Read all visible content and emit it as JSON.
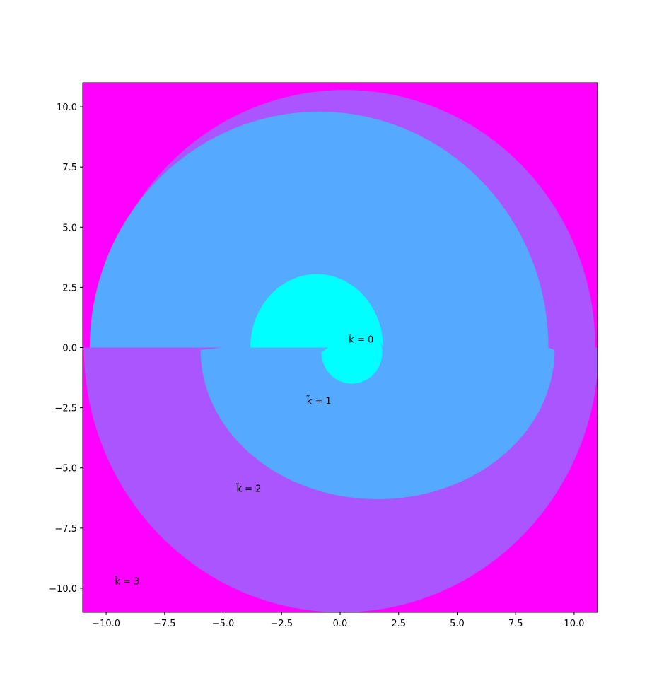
{
  "chart_data": {
    "type": "heatmap",
    "title": "",
    "xlabel": "",
    "ylabel": "",
    "xlim": [
      -11,
      11
    ],
    "ylim": [
      -11,
      11
    ],
    "xticks": [
      -10.0,
      -7.5,
      -5.0,
      -2.5,
      0.0,
      2.5,
      5.0,
      7.5,
      10.0
    ],
    "yticks": [
      -10.0,
      -7.5,
      -5.0,
      -2.5,
      0.0,
      2.5,
      5.0,
      7.5,
      10.0
    ],
    "xtick_labels": [
      "−10.0",
      "−7.5",
      "−5.0",
      "−2.5",
      "0.0",
      "2.5",
      "5.0",
      "7.5",
      "10.0"
    ],
    "ytick_labels": [
      "−10.0",
      "−7.5",
      "−5.0",
      "−2.5",
      "0.0",
      "2.5",
      "5.0",
      "7.5",
      "10.0"
    ],
    "grid": false,
    "regions": [
      {
        "k": 0,
        "color": "#00ffff",
        "label": "k̃ = 0",
        "label_pos": [
          0.9,
          0.35
        ]
      },
      {
        "k": 1,
        "color": "#55aaff",
        "label": "k̃ = 1",
        "label_pos": [
          -0.9,
          -2.2
        ]
      },
      {
        "k": 2,
        "color": "#aa55ff",
        "label": "k̃ = 2",
        "label_pos": [
          -3.9,
          -5.85
        ]
      },
      {
        "k": 3,
        "color": "#ff00ff",
        "label": "k̃ = 3",
        "label_pos": [
          -9.1,
          -9.7
        ]
      }
    ]
  }
}
